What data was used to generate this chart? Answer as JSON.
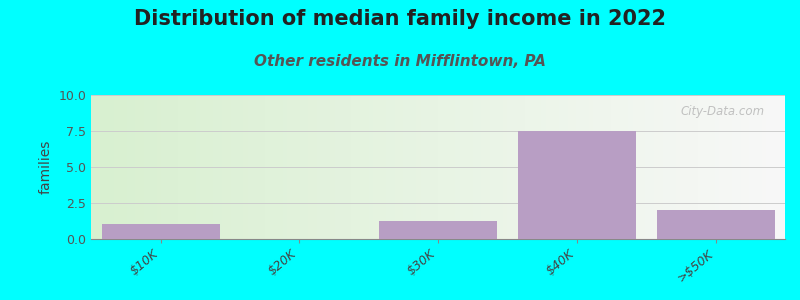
{
  "title": "Distribution of median family income in 2022",
  "subtitle": "Other residents in Mifflintown, PA",
  "ylabel": "families",
  "background_color": "#00FFFF",
  "bar_color": "#b89ec4",
  "categories": [
    "$10K",
    "$20K",
    "$30K",
    "$40K",
    ">$50K"
  ],
  "values": [
    1.0,
    0.0,
    1.25,
    7.5,
    2.0
  ],
  "ylim": [
    0,
    10
  ],
  "yticks": [
    0,
    2.5,
    5,
    7.5,
    10
  ],
  "title_fontsize": 15,
  "subtitle_fontsize": 11,
  "ylabel_fontsize": 10,
  "tick_fontsize": 9,
  "watermark": "City-Data.com",
  "grid_color": "#cccccc",
  "plot_bg_left": "#d8f0d0",
  "plot_bg_right": "#f8f8f8"
}
